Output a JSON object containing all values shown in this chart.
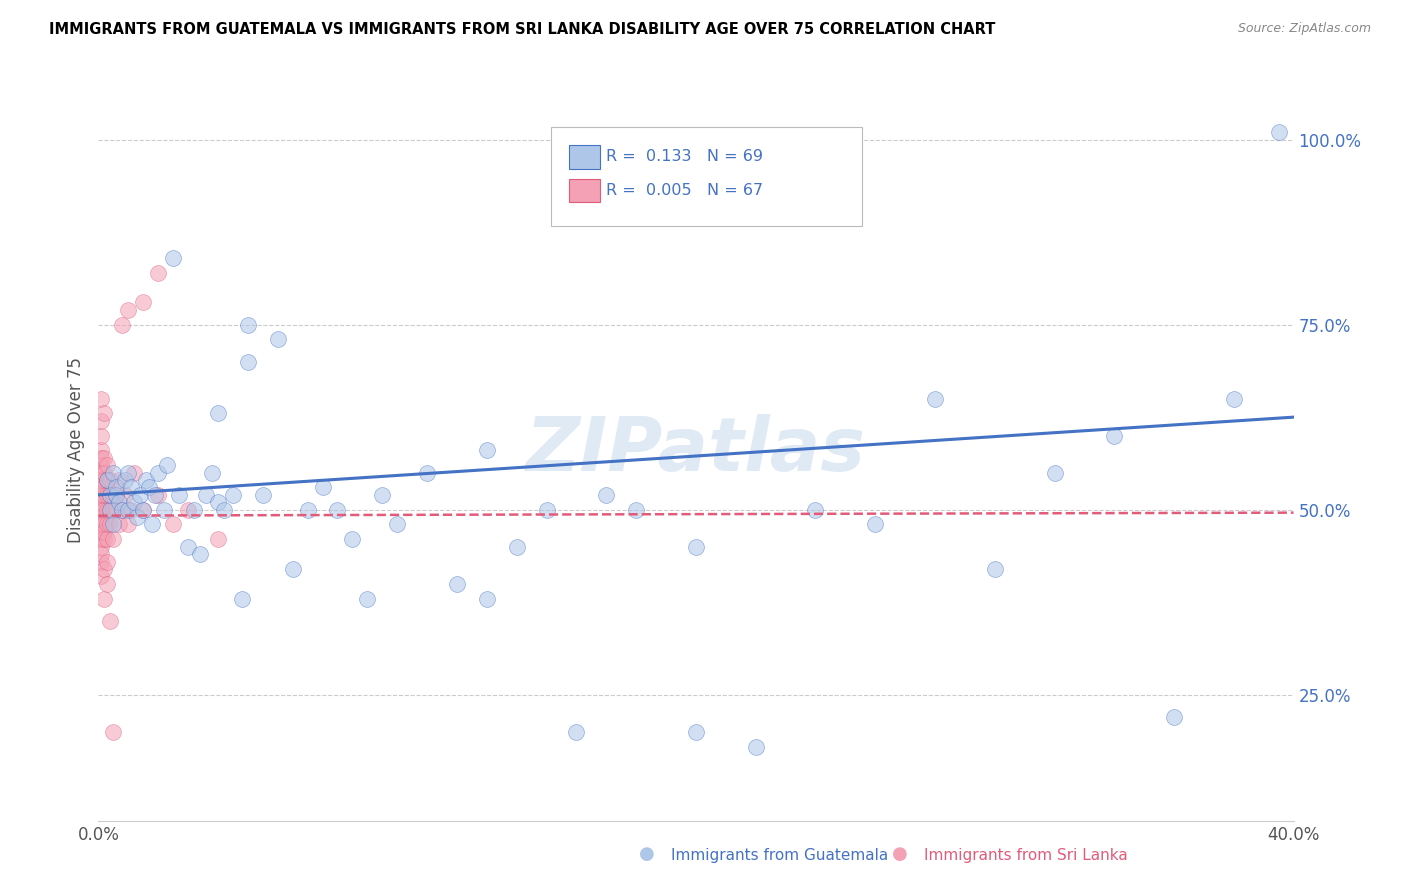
{
  "title": "IMMIGRANTS FROM GUATEMALA VS IMMIGRANTS FROM SRI LANKA DISABILITY AGE OVER 75 CORRELATION CHART",
  "source": "Source: ZipAtlas.com",
  "xlabel_guatemala": "Immigrants from Guatemala",
  "xlabel_srilanka": "Immigrants from Sri Lanka",
  "ylabel": "Disability Age Over 75",
  "xlim": [
    0.0,
    0.4
  ],
  "ylim": [
    0.08,
    1.08
  ],
  "ytick_positions": [
    0.25,
    0.5,
    0.75,
    1.0
  ],
  "ytick_labels": [
    "25.0%",
    "50.0%",
    "75.0%",
    "100.0%"
  ],
  "legend_R_guatemala": "0.133",
  "legend_N_guatemala": "69",
  "legend_R_srilanka": "0.005",
  "legend_N_srilanka": "67",
  "color_guatemala": "#aec6e8",
  "color_srilanka": "#f4a0b5",
  "color_line_guatemala": "#4472c4",
  "color_line_srilanka": "#e05c7a",
  "background_color": "#ffffff",
  "title_color": "#000000",
  "source_color": "#888888",
  "legend_text_color": "#4472c4",
  "guatemala_x": [
    0.003,
    0.004,
    0.004,
    0.005,
    0.005,
    0.006,
    0.006,
    0.007,
    0.008,
    0.009,
    0.01,
    0.01,
    0.011,
    0.012,
    0.013,
    0.014,
    0.015,
    0.016,
    0.017,
    0.018,
    0.019,
    0.02,
    0.022,
    0.023,
    0.025,
    0.027,
    0.03,
    0.032,
    0.034,
    0.036,
    0.038,
    0.04,
    0.042,
    0.045,
    0.048,
    0.05,
    0.055,
    0.06,
    0.065,
    0.07,
    0.075,
    0.08,
    0.085,
    0.09,
    0.095,
    0.1,
    0.11,
    0.12,
    0.13,
    0.14,
    0.15,
    0.16,
    0.17,
    0.18,
    0.2,
    0.22,
    0.24,
    0.26,
    0.28,
    0.3,
    0.32,
    0.34,
    0.36,
    0.38,
    0.395,
    0.04,
    0.05,
    0.13,
    0.2
  ],
  "guatemala_y": [
    0.54,
    0.5,
    0.52,
    0.55,
    0.48,
    0.52,
    0.53,
    0.51,
    0.5,
    0.54,
    0.55,
    0.5,
    0.53,
    0.51,
    0.49,
    0.52,
    0.5,
    0.54,
    0.53,
    0.48,
    0.52,
    0.55,
    0.5,
    0.56,
    0.84,
    0.52,
    0.45,
    0.5,
    0.44,
    0.52,
    0.55,
    0.51,
    0.5,
    0.52,
    0.38,
    0.7,
    0.52,
    0.73,
    0.42,
    0.5,
    0.53,
    0.5,
    0.46,
    0.38,
    0.52,
    0.48,
    0.55,
    0.4,
    0.58,
    0.45,
    0.5,
    0.2,
    0.52,
    0.5,
    0.45,
    0.18,
    0.5,
    0.48,
    0.65,
    0.42,
    0.55,
    0.6,
    0.22,
    0.65,
    1.01,
    0.63,
    0.75,
    0.38,
    0.2
  ],
  "srilanka_x": [
    0.001,
    0.001,
    0.001,
    0.001,
    0.001,
    0.001,
    0.001,
    0.001,
    0.001,
    0.001,
    0.001,
    0.001,
    0.001,
    0.001,
    0.001,
    0.001,
    0.001,
    0.001,
    0.001,
    0.001,
    0.002,
    0.002,
    0.002,
    0.002,
    0.002,
    0.002,
    0.002,
    0.002,
    0.002,
    0.002,
    0.002,
    0.002,
    0.003,
    0.003,
    0.003,
    0.003,
    0.003,
    0.003,
    0.003,
    0.003,
    0.004,
    0.004,
    0.004,
    0.004,
    0.004,
    0.005,
    0.005,
    0.005,
    0.006,
    0.006,
    0.007,
    0.007,
    0.008,
    0.009,
    0.01,
    0.011,
    0.012,
    0.015,
    0.02,
    0.025,
    0.03,
    0.04,
    0.015,
    0.02,
    0.01,
    0.008,
    0.005
  ],
  "srilanka_y": [
    0.51,
    0.53,
    0.49,
    0.55,
    0.47,
    0.52,
    0.5,
    0.48,
    0.54,
    0.46,
    0.43,
    0.56,
    0.45,
    0.58,
    0.6,
    0.57,
    0.44,
    0.62,
    0.65,
    0.41,
    0.5,
    0.52,
    0.48,
    0.54,
    0.46,
    0.55,
    0.47,
    0.53,
    0.42,
    0.57,
    0.63,
    0.38,
    0.52,
    0.5,
    0.48,
    0.54,
    0.46,
    0.43,
    0.56,
    0.4,
    0.5,
    0.52,
    0.48,
    0.54,
    0.35,
    0.5,
    0.52,
    0.46,
    0.5,
    0.52,
    0.48,
    0.54,
    0.5,
    0.52,
    0.48,
    0.5,
    0.55,
    0.5,
    0.52,
    0.48,
    0.5,
    0.46,
    0.78,
    0.82,
    0.77,
    0.75,
    0.2
  ],
  "watermark": "ZIPatlas",
  "dot_size": 130,
  "dot_alpha": 0.55
}
